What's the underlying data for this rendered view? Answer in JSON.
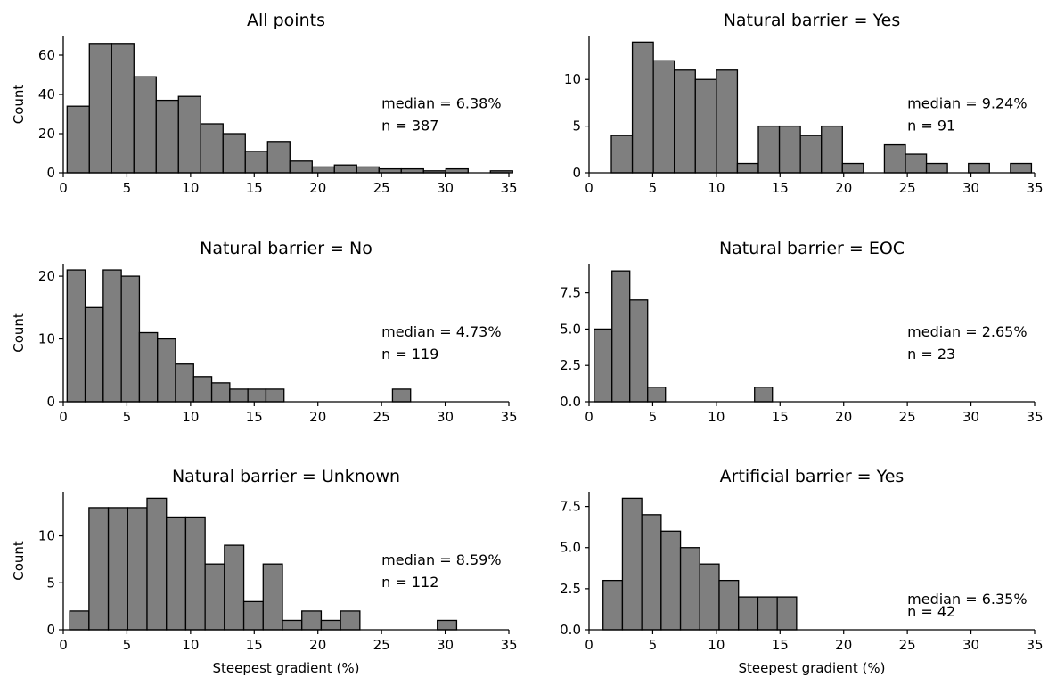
{
  "chart_data": [
    {
      "type": "bar",
      "title": "All points",
      "xlabel": "",
      "ylabel": "Count",
      "bin_width": 1.75,
      "bin_start": 0.3,
      "values": [
        34,
        66,
        66,
        49,
        37,
        39,
        25,
        20,
        11,
        16,
        6,
        3,
        4,
        3,
        2,
        2,
        1,
        2,
        0,
        1
      ],
      "xlim": [
        0,
        35
      ],
      "ylim": [
        0,
        70
      ],
      "xticks": [
        0,
        5,
        10,
        15,
        20,
        25,
        30,
        35
      ],
      "yticks": [
        0,
        20,
        40,
        60
      ],
      "annotation": {
        "median": "median = 6.38%",
        "n": "n = 387"
      }
    },
    {
      "type": "bar",
      "title": "Natural barrier = Yes",
      "xlabel": "",
      "ylabel": "",
      "bin_width": 1.65,
      "bin_start": 1.75,
      "values": [
        4,
        14,
        12,
        11,
        10,
        11,
        1,
        5,
        5,
        4,
        5,
        1,
        0,
        3,
        2,
        1,
        0,
        1,
        0,
        1
      ],
      "xlim": [
        0,
        35
      ],
      "ylim": [
        0,
        14.7
      ],
      "xticks": [
        0,
        5,
        10,
        15,
        20,
        25,
        30,
        35
      ],
      "yticks": [
        0,
        5,
        10
      ],
      "annotation": {
        "median": "median = 9.24%",
        "n": "n = 91"
      }
    },
    {
      "type": "bar",
      "title": "Natural barrier = No",
      "xlabel": "",
      "ylabel": "Count",
      "bin_width": 1.42,
      "bin_start": 0.3,
      "values": [
        21,
        15,
        21,
        20,
        11,
        10,
        6,
        4,
        3,
        2,
        2,
        2,
        0,
        0,
        0,
        0,
        0,
        0,
        2
      ],
      "xlim": [
        0,
        35
      ],
      "ylim": [
        0,
        22
      ],
      "xticks": [
        0,
        5,
        10,
        15,
        20,
        25,
        30,
        35
      ],
      "yticks": [
        0,
        10,
        20
      ],
      "annotation": {
        "median": "median = 4.73%",
        "n": "n = 119"
      }
    },
    {
      "type": "bar",
      "title": "Natural barrier = EOC",
      "xlabel": "",
      "ylabel": "",
      "bin_width": 1.4,
      "bin_start": 0.4,
      "values": [
        5,
        9,
        7,
        1,
        0,
        0,
        0,
        0,
        0,
        1
      ],
      "xlim": [
        0,
        35
      ],
      "ylim": [
        0,
        9.5
      ],
      "xticks": [
        0,
        5,
        10,
        15,
        20,
        25,
        30,
        35
      ],
      "yticks": [
        "0.0",
        "2.5",
        "5.0",
        "7.5"
      ],
      "annotation": {
        "median": "median = 2.65%",
        "n": "n = 23"
      }
    },
    {
      "type": "bar",
      "title": "Natural barrier = Unknown",
      "xlabel": "Steepest gradient (%)",
      "ylabel": "Count",
      "bin_width": 1.52,
      "bin_start": 0.5,
      "values": [
        2,
        13,
        13,
        13,
        14,
        12,
        12,
        7,
        9,
        3,
        7,
        1,
        2,
        1,
        2,
        0,
        0,
        0,
        0,
        1
      ],
      "xlim": [
        0,
        35
      ],
      "ylim": [
        0,
        14.7
      ],
      "xticks": [
        0,
        5,
        10,
        15,
        20,
        25,
        30,
        35
      ],
      "yticks": [
        0,
        5,
        10
      ],
      "annotation": {
        "median": "median = 8.59%",
        "n": "n = 112"
      }
    },
    {
      "type": "bar",
      "title": "Artificial barrier = Yes",
      "xlabel": "Steepest gradient (%)",
      "ylabel": "",
      "bin_width": 1.52,
      "bin_start": 1.1,
      "values": [
        3,
        8,
        7,
        6,
        5,
        4,
        3,
        2,
        2,
        2
      ],
      "xlim": [
        0,
        35
      ],
      "ylim": [
        0,
        8.4
      ],
      "xticks": [
        0,
        5,
        10,
        15,
        20,
        25,
        30,
        35
      ],
      "yticks": [
        "0.0",
        "2.5",
        "5.0",
        "7.5"
      ],
      "annotation": {
        "median": "median = 6.35%",
        "n": "n = 42"
      }
    }
  ],
  "colors": {
    "bar_fill": "#7f7f7f",
    "bar_edge": "#000000",
    "axis": "#000000"
  }
}
